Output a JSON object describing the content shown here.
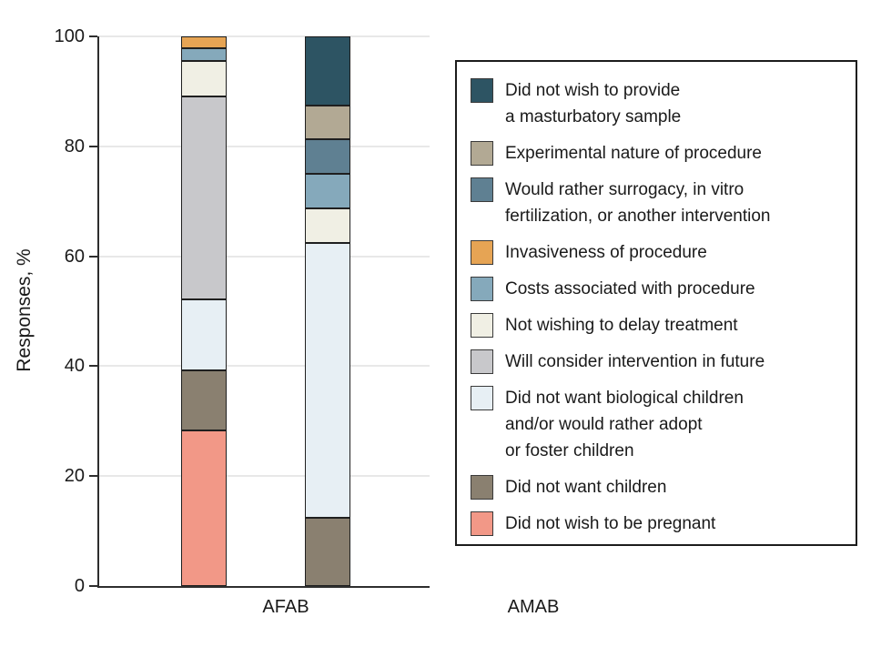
{
  "chart_data": {
    "type": "bar",
    "subtype": "stacked-percent",
    "categories": [
      "AFAB",
      "AMAB"
    ],
    "title": "",
    "xlabel": "",
    "ylabel": "Responses, %",
    "ylim": [
      0,
      100
    ],
    "yticks": [
      0,
      20,
      40,
      60,
      80,
      100
    ],
    "grid": true,
    "legend_position": "right",
    "series": [
      {
        "key": "no-pregnancy",
        "name": "Did not wish to be pregnant",
        "color": "#F29887",
        "values": [
          28.3,
          0
        ]
      },
      {
        "key": "no-children",
        "name": "Did not want children",
        "color": "#8A8070",
        "values": [
          10.9,
          12.5
        ]
      },
      {
        "key": "no-bio-children",
        "name": "Did not want biological children and/or would rather adopt or foster children",
        "color": "#E7EFF4",
        "values": [
          13.0,
          50.0
        ]
      },
      {
        "key": "consider-future",
        "name": "Will consider intervention in future",
        "color": "#C8C8CB",
        "values": [
          36.9,
          0
        ]
      },
      {
        "key": "delay-treatment",
        "name": "Not wishing to delay treatment",
        "color": "#F0EFE4",
        "values": [
          6.5,
          6.25
        ]
      },
      {
        "key": "costs",
        "name": "Costs associated with procedure",
        "color": "#85A9BB",
        "values": [
          2.2,
          6.25
        ]
      },
      {
        "key": "invasiveness",
        "name": "Invasiveness of procedure",
        "color": "#E6A454",
        "values": [
          2.2,
          0
        ]
      },
      {
        "key": "surrogacy-ivf",
        "name": "Would rather surrogacy, in vitro fertilization, or another intervention",
        "color": "#5F8092",
        "values": [
          0,
          6.25
        ]
      },
      {
        "key": "experimental-nature",
        "name": "Experimental nature of procedure",
        "color": "#B2A994",
        "values": [
          0,
          6.25
        ]
      },
      {
        "key": "masturbatory-sample",
        "name": "Did not wish to provide a masturbatory sample",
        "color": "#2D5463",
        "values": [
          0,
          12.5
        ]
      }
    ]
  },
  "legend": {
    "items": [
      {
        "key": "masturbatory-sample",
        "color": "#2D5463",
        "lines": [
          "Did not wish to provide",
          "a masturbatory sample"
        ]
      },
      {
        "key": "experimental-nature",
        "color": "#B2A994",
        "lines": [
          "Experimental nature of procedure"
        ]
      },
      {
        "key": "surrogacy-ivf",
        "color": "#5F8092",
        "lines": [
          "Would rather surrogacy, in vitro",
          "fertilization, or another intervention"
        ]
      },
      {
        "key": "invasiveness",
        "color": "#E6A454",
        "lines": [
          "Invasiveness of procedure"
        ]
      },
      {
        "key": "costs",
        "color": "#85A9BB",
        "lines": [
          "Costs associated with procedure"
        ]
      },
      {
        "key": "delay-treatment",
        "color": "#F0EFE4",
        "lines": [
          "Not wishing to delay treatment"
        ]
      },
      {
        "key": "consider-future",
        "color": "#C8C8CB",
        "lines": [
          "Will consider intervention in future"
        ]
      },
      {
        "key": "no-bio-children",
        "color": "#E7EFF4",
        "lines": [
          "Did not want biological children",
          "and/or would rather adopt",
          "or foster children"
        ]
      },
      {
        "key": "no-children",
        "color": "#8A8070",
        "lines": [
          "Did not want children"
        ]
      },
      {
        "key": "no-pregnancy",
        "color": "#F29887",
        "lines": [
          "Did not wish to be pregnant"
        ]
      }
    ]
  }
}
